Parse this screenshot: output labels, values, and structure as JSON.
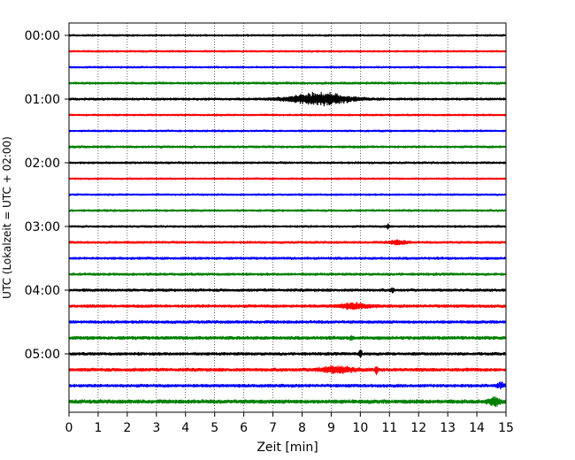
{
  "chart_data": {
    "type": "line",
    "title": "",
    "xlabel": "Zeit  [min]",
    "ylabel": "UTC (Lokalzeit = UTC + 02:00)",
    "xlim": [
      0,
      15
    ],
    "x_ticks": [
      0,
      1,
      2,
      3,
      4,
      5,
      6,
      7,
      8,
      9,
      10,
      11,
      12,
      13,
      14,
      15
    ],
    "x_tick_labels": [
      "0",
      "1",
      "2",
      "3",
      "4",
      "5",
      "6",
      "7",
      "8",
      "9",
      "10",
      "11",
      "12",
      "13",
      "14",
      "15"
    ],
    "y_tick_labels": [
      "00:00",
      "01:00",
      "02:00",
      "03:00",
      "04:00",
      "05:00"
    ],
    "y_tick_trace_index": [
      0,
      4,
      8,
      12,
      16,
      20
    ],
    "trace_minutes": 15,
    "grid": "vertical-dotted",
    "colors": [
      "#000000",
      "#ff0000",
      "#0000ff",
      "#008000"
    ],
    "traces": [
      {
        "start": "00:00",
        "color": "#000000",
        "noise": 0.9,
        "events": []
      },
      {
        "start": "00:15",
        "color": "#ff0000",
        "noise": 0.9,
        "events": []
      },
      {
        "start": "00:30",
        "color": "#0000ff",
        "noise": 0.9,
        "events": []
      },
      {
        "start": "00:45",
        "color": "#008000",
        "noise": 1.1,
        "events": []
      },
      {
        "start": "01:00",
        "color": "#000000",
        "noise": 1.1,
        "events": [
          {
            "t": 8.6,
            "amp": 6.5,
            "width": 1.0
          }
        ]
      },
      {
        "start": "01:15",
        "color": "#ff0000",
        "noise": 0.9,
        "events": []
      },
      {
        "start": "01:30",
        "color": "#0000ff",
        "noise": 0.9,
        "events": []
      },
      {
        "start": "01:45",
        "color": "#008000",
        "noise": 1.1,
        "events": []
      },
      {
        "start": "02:00",
        "color": "#000000",
        "noise": 1.0,
        "events": []
      },
      {
        "start": "02:15",
        "color": "#ff0000",
        "noise": 0.9,
        "events": []
      },
      {
        "start": "02:30",
        "color": "#0000ff",
        "noise": 0.9,
        "events": []
      },
      {
        "start": "02:45",
        "color": "#008000",
        "noise": 1.0,
        "events": []
      },
      {
        "start": "03:00",
        "color": "#000000",
        "noise": 1.0,
        "events": [
          {
            "t": 10.95,
            "amp": 2.5,
            "width": 0.05
          }
        ]
      },
      {
        "start": "03:15",
        "color": "#ff0000",
        "noise": 1.1,
        "events": [
          {
            "t": 11.3,
            "amp": 2.0,
            "width": 0.3
          }
        ]
      },
      {
        "start": "03:30",
        "color": "#0000ff",
        "noise": 1.2,
        "events": []
      },
      {
        "start": "03:45",
        "color": "#008000",
        "noise": 1.2,
        "events": []
      },
      {
        "start": "04:00",
        "color": "#000000",
        "noise": 1.3,
        "events": [
          {
            "t": 11.1,
            "amp": 2.5,
            "width": 0.05
          }
        ]
      },
      {
        "start": "04:15",
        "color": "#ff0000",
        "noise": 1.4,
        "events": [
          {
            "t": 9.8,
            "amp": 2.5,
            "width": 0.5
          }
        ]
      },
      {
        "start": "04:30",
        "color": "#0000ff",
        "noise": 1.4,
        "events": []
      },
      {
        "start": "04:45",
        "color": "#008000",
        "noise": 1.6,
        "events": [
          {
            "t": 9.7,
            "amp": 2.5,
            "width": 0.05
          }
        ]
      },
      {
        "start": "05:00",
        "color": "#000000",
        "noise": 1.4,
        "events": [
          {
            "t": 10.0,
            "amp": 5.0,
            "width": 0.05
          }
        ]
      },
      {
        "start": "05:15",
        "color": "#ff0000",
        "noise": 1.6,
        "events": [
          {
            "t": 9.2,
            "amp": 3.0,
            "width": 0.6
          },
          {
            "t": 10.55,
            "amp": 4.0,
            "width": 0.05
          }
        ]
      },
      {
        "start": "05:30",
        "color": "#0000ff",
        "noise": 1.5,
        "events": [
          {
            "t": 14.8,
            "amp": 3.0,
            "width": 0.1
          }
        ]
      },
      {
        "start": "05:45",
        "color": "#008000",
        "noise": 1.9,
        "events": [
          {
            "t": 14.6,
            "amp": 4.0,
            "width": 0.2
          }
        ]
      }
    ]
  }
}
